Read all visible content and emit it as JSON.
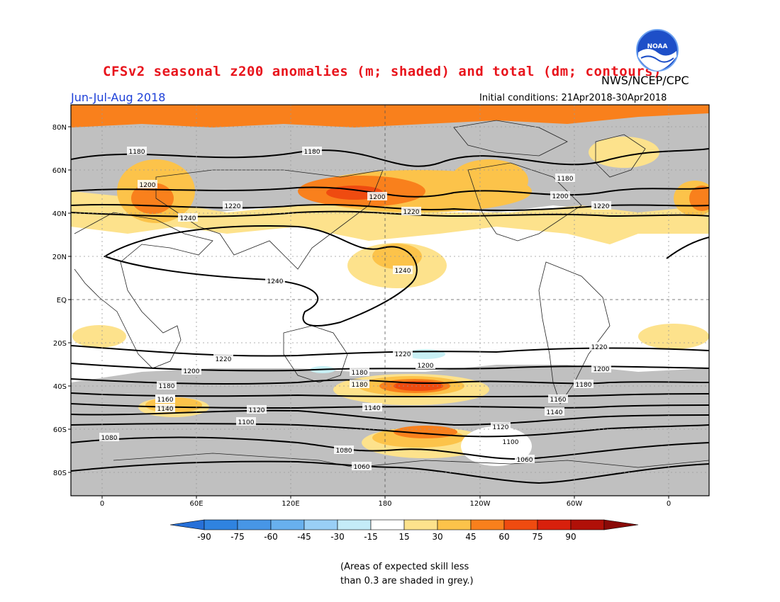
{
  "header": {
    "title": "CFSv2 seasonal z200 anomalies (m; shaded) and total (dm; contours)",
    "org": "NWS/NCEP/CPC",
    "period": "Jun-Jul-Aug 2018",
    "initial_conditions": "Initial conditions: 21Apr2018-30Apr2018",
    "logo_text": "NOAA"
  },
  "map": {
    "lat_labels": [
      "80N",
      "60N",
      "40N",
      "20N",
      "EQ",
      "20S",
      "40S",
      "60S",
      "80S"
    ],
    "lon_labels": [
      "0",
      "60E",
      "120E",
      "180",
      "120W",
      "60W",
      "0"
    ],
    "contour_labels": [
      "1180",
      "1180",
      "1200",
      "1220",
      "1240",
      "1160",
      "1200",
      "1220",
      "1180",
      "1200",
      "1220",
      "1240",
      "1240",
      "1220",
      "1200",
      "1180",
      "1160",
      "1140",
      "1120",
      "1100",
      "1080",
      "1220",
      "1200",
      "1180",
      "1180",
      "1140",
      "1120",
      "1100",
      "1080",
      "1060",
      "1060",
      "1220",
      "1200",
      "1180",
      "1160",
      "1140"
    ],
    "colors": {
      "skill_grey": "#c0c0c0",
      "pos_15_30": "#fde28c",
      "pos_30_45": "#fcc34a",
      "pos_45_60": "#f9801c",
      "pos_60_75": "#ef4b10",
      "pos_75_90": "#d8200c",
      "neg_15_30": "#c8f0f5"
    }
  },
  "colorbar": {
    "tick_labels": [
      "-90",
      "-75",
      "-60",
      "-45",
      "-30",
      "-15",
      "15",
      "30",
      "45",
      "60",
      "75",
      "90"
    ],
    "colors": [
      "#2770d8",
      "#2f83e0",
      "#4796e6",
      "#68b0ee",
      "#99cff6",
      "#c4ecf8",
      "#ffffff",
      "#fde28c",
      "#fcc34a",
      "#f9801c",
      "#ef4b10",
      "#d8200c",
      "#b01008",
      "#8a0a08"
    ]
  },
  "note": {
    "line1": "(Areas of expected skill less",
    "line2": "than 0.3 are shaded in grey.)"
  }
}
